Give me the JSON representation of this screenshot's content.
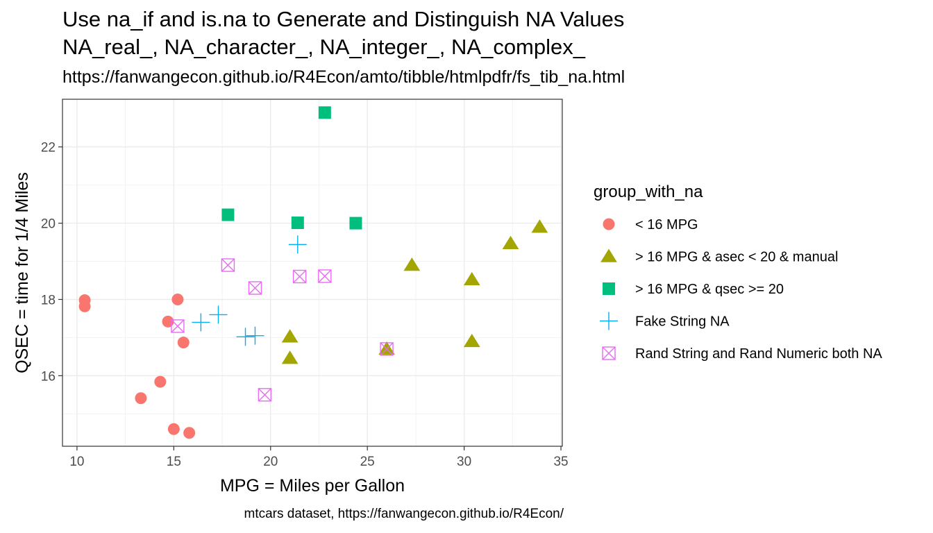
{
  "chart_data": {
    "type": "scatter",
    "title": "Use na_if and is.na to Generate and Distinguish NA Values",
    "subtitle_line2": "NA_real_, NA_character_, NA_integer_, NA_complex_",
    "subtitle_url": "https://fanwangecon.github.io/R4Econ/amto/tibble/htmlpdfr/fs_tib_na.html",
    "caption": "mtcars dataset, https://fanwangecon.github.io/R4Econ/",
    "xlabel": "MPG = Miles per Gallon",
    "ylabel": "QSEC = time for 1/4 Miles",
    "xlim": [
      9.25,
      35.07
    ],
    "ylim": [
      14.15,
      23.25
    ],
    "x_ticks": [
      10,
      15,
      20,
      25,
      30,
      35
    ],
    "y_ticks": [
      16,
      18,
      20,
      22
    ],
    "grid": true,
    "legend_title": "group_with_na",
    "legend_position": "right",
    "series": [
      {
        "name": "< 16 MPG",
        "shape": "circle",
        "color": "#F8766D",
        "points": [
          {
            "x": 10.4,
            "y": 17.98
          },
          {
            "x": 10.4,
            "y": 17.82
          },
          {
            "x": 13.3,
            "y": 15.41
          },
          {
            "x": 14.3,
            "y": 15.84
          },
          {
            "x": 14.7,
            "y": 17.42
          },
          {
            "x": 15.0,
            "y": 14.6
          },
          {
            "x": 15.2,
            "y": 18.0
          },
          {
            "x": 15.5,
            "y": 16.87
          },
          {
            "x": 15.8,
            "y": 14.5
          }
        ]
      },
      {
        "name": "> 16 MPG & asec < 20 & manual",
        "shape": "triangle",
        "color": "#A3A500",
        "points": [
          {
            "x": 21.0,
            "y": 16.46
          },
          {
            "x": 21.0,
            "y": 17.02
          },
          {
            "x": 26.0,
            "y": 16.7
          },
          {
            "x": 27.3,
            "y": 18.9
          },
          {
            "x": 30.4,
            "y": 18.52
          },
          {
            "x": 30.4,
            "y": 16.9
          },
          {
            "x": 32.4,
            "y": 19.47
          },
          {
            "x": 33.9,
            "y": 19.9
          }
        ]
      },
      {
        "name": "> 16 MPG & qsec >= 20",
        "shape": "square",
        "color": "#00BF7D",
        "points": [
          {
            "x": 17.8,
            "y": 20.22
          },
          {
            "x": 21.4,
            "y": 20.01
          },
          {
            "x": 22.8,
            "y": 22.9
          },
          {
            "x": 24.4,
            "y": 20.0
          }
        ]
      },
      {
        "name": "Fake String NA",
        "shape": "plus",
        "color": "#00B0F6",
        "points": [
          {
            "x": 16.4,
            "y": 17.4
          },
          {
            "x": 17.3,
            "y": 17.6
          },
          {
            "x": 18.7,
            "y": 17.02
          },
          {
            "x": 19.2,
            "y": 17.05
          },
          {
            "x": 21.4,
            "y": 19.44
          }
        ]
      },
      {
        "name": "Rand String and Rand Numeric both NA",
        "shape": "square-x",
        "color": "#E76BF3",
        "points": [
          {
            "x": 15.2,
            "y": 17.3
          },
          {
            "x": 17.8,
            "y": 18.9
          },
          {
            "x": 19.2,
            "y": 18.3
          },
          {
            "x": 19.7,
            "y": 15.5
          },
          {
            "x": 21.5,
            "y": 18.6
          },
          {
            "x": 22.8,
            "y": 18.61
          },
          {
            "x": 26.0,
            "y": 16.7
          }
        ]
      }
    ]
  }
}
